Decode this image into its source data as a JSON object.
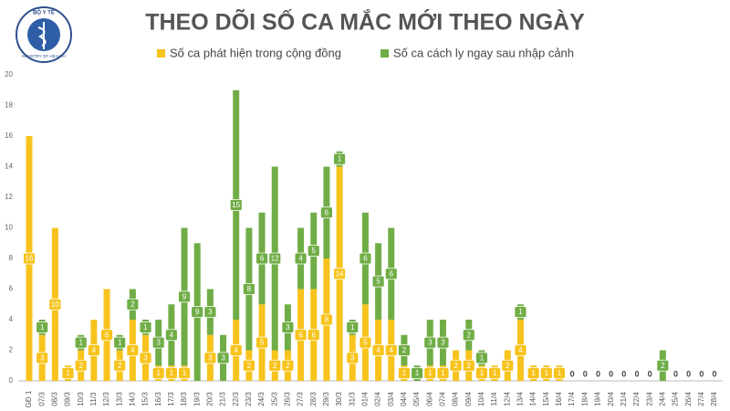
{
  "logo": {
    "top": "BỘ Y TẾ",
    "bottom": "MINISTRY OF HEALTH"
  },
  "chart_data": {
    "type": "stacked_bar",
    "title": "THEO DÕI SỐ CA MẮC MỚI THEO NGÀY",
    "categories": [
      "GĐ 1",
      "07/3",
      "08/3",
      "09/3",
      "10/3",
      "11/3",
      "12/3",
      "13/3",
      "14/3",
      "15/3",
      "16/3",
      "17/3",
      "18/3",
      "19/3",
      "20/3",
      "21/3",
      "22/3",
      "23/3",
      "24/3",
      "25/3",
      "26/3",
      "27/3",
      "28/3",
      "29/3",
      "30/3",
      "31/3",
      "01/4",
      "02/4",
      "03/4",
      "04/4",
      "05/4",
      "06/4",
      "07/4",
      "08/4",
      "09/4",
      "10/4",
      "11/4",
      "12/4",
      "13/4",
      "14/4",
      "15/4",
      "16/4",
      "17/4",
      "18/4",
      "19/4",
      "20/4",
      "21/4",
      "22/4",
      "23/4",
      "24/4",
      "25/4",
      "26/4",
      "27/4",
      "28/4"
    ],
    "series": [
      {
        "name": "Số ca phát hiện trong cộng đồng",
        "color": "#f7c31c",
        "values": [
          16,
          3,
          10,
          1,
          2,
          4,
          6,
          2,
          4,
          3,
          1,
          1,
          1,
          0,
          3,
          0,
          4,
          2,
          5,
          2,
          2,
          6,
          6,
          8,
          14,
          3,
          5,
          4,
          4,
          1,
          0,
          1,
          1,
          2,
          2,
          1,
          1,
          2,
          4,
          1,
          1,
          1,
          0,
          0,
          0,
          0,
          0,
          0,
          0,
          0,
          0,
          0,
          0,
          0
        ]
      },
      {
        "name": "Số ca cách ly ngay sau nhập cảnh",
        "color": "#70ad47",
        "values": [
          0,
          1,
          0,
          0,
          1,
          0,
          0,
          1,
          2,
          1,
          3,
          4,
          9,
          9,
          3,
          3,
          15,
          8,
          6,
          12,
          3,
          4,
          5,
          6,
          1,
          1,
          6,
          5,
          6,
          2,
          1,
          3,
          3,
          0,
          2,
          1,
          0,
          0,
          1,
          0,
          0,
          0,
          0,
          0,
          0,
          0,
          0,
          0,
          0,
          2,
          0,
          0,
          0,
          0
        ]
      }
    ],
    "ylim": [
      0,
      20
    ],
    "yticks": [
      0,
      2,
      4,
      6,
      8,
      10,
      12,
      14,
      16,
      18,
      20
    ],
    "grid": false
  }
}
